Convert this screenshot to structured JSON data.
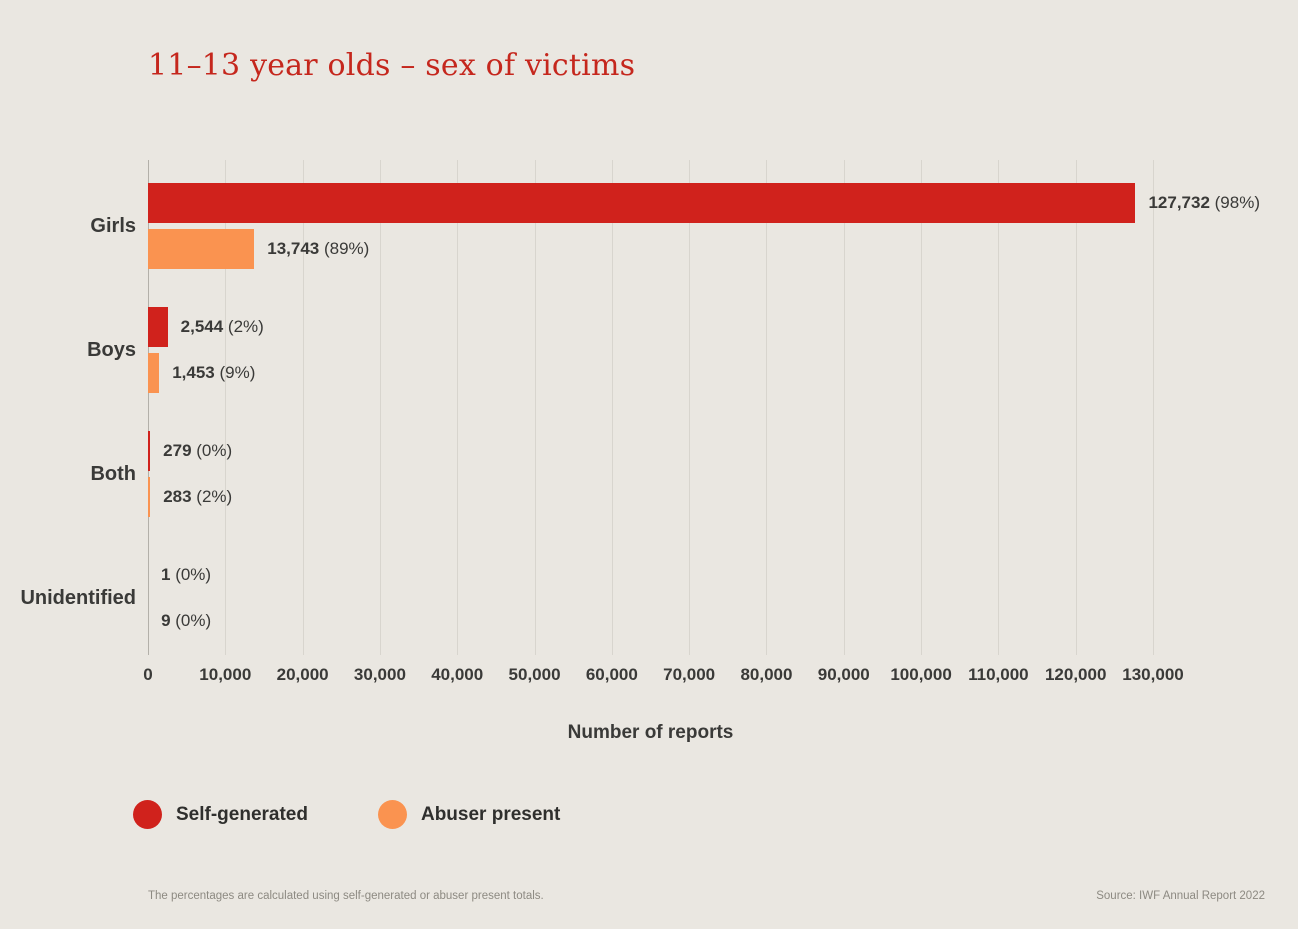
{
  "title": "11–13 year olds – sex of victims",
  "x_axis_title": "Number of reports",
  "footnote": "The percentages are calculated using self-generated or abuser present totals.",
  "source": "Source: IWF Annual Report 2022",
  "colors": {
    "background": "#eae7e1",
    "title": "#c5271d",
    "self_generated": "#d0221c",
    "abuser_present": "#fa9350",
    "text_dark": "#3a3a38",
    "gridline": "#d8d5ce",
    "footnote": "#8d8a82"
  },
  "legend": {
    "items": [
      {
        "label": "Self-generated",
        "color": "#d0221c"
      },
      {
        "label": "Abuser present",
        "color": "#fa9350"
      }
    ]
  },
  "chart_data": {
    "type": "bar",
    "orientation": "horizontal",
    "title": "11–13 year olds – sex of victims",
    "xlabel": "Number of reports",
    "ylabel": "",
    "xlim": [
      0,
      130000
    ],
    "grid": true,
    "legend_position": "bottom",
    "categories": [
      "Girls",
      "Boys",
      "Both",
      "Unidentified"
    ],
    "series": [
      {
        "name": "Self-generated",
        "color": "#d0221c",
        "values": [
          127732,
          2544,
          279,
          1
        ],
        "points": [
          {
            "value": 127732,
            "num": "127,732",
            "pct": "(98%)"
          },
          {
            "value": 2544,
            "num": "2,544",
            "pct": "(2%)"
          },
          {
            "value": 279,
            "num": "279",
            "pct": "(0%)"
          },
          {
            "value": 1,
            "num": "1",
            "pct": "(0%)"
          }
        ]
      },
      {
        "name": "Abuser present",
        "color": "#fa9350",
        "values": [
          13743,
          1453,
          283,
          9
        ],
        "points": [
          {
            "value": 13743,
            "num": "13,743",
            "pct": "(89%)"
          },
          {
            "value": 1453,
            "num": "1,453",
            "pct": "(9%)"
          },
          {
            "value": 283,
            "num": "283",
            "pct": "(2%)"
          },
          {
            "value": 9,
            "num": "9",
            "pct": "(0%)"
          }
        ]
      }
    ],
    "xticks": [
      0,
      10000,
      20000,
      30000,
      40000,
      50000,
      60000,
      70000,
      80000,
      90000,
      100000,
      110000,
      120000,
      130000
    ],
    "xtick_labels": [
      "0",
      "10,000",
      "20,000",
      "30,000",
      "40,000",
      "50,000",
      "60,000",
      "70,000",
      "80,000",
      "90,000",
      "100,000",
      "110,000",
      "120,000",
      "130,000"
    ]
  }
}
